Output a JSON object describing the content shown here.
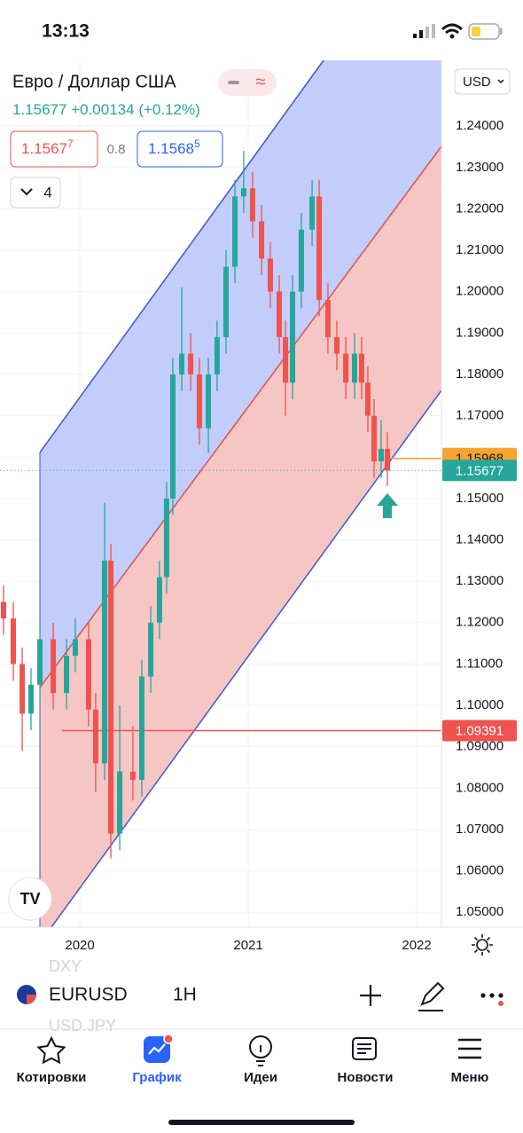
{
  "status_bar": {
    "time": "13:13"
  },
  "header": {
    "title": "Евро / Доллар США",
    "price": "1.15677",
    "change": "+0.00134",
    "change_pct": "(+0.12%)",
    "currency": "USD"
  },
  "order_panel": {
    "sell": "1.1567",
    "sell_pip": "7",
    "spread": "0.8",
    "buy": "1.1568",
    "buy_pip": "5"
  },
  "indicators_toggle": "4",
  "chart_data": {
    "type": "candlestick",
    "x": [
      2019.547,
      2019.605,
      2019.658,
      2019.71,
      2019.763,
      2019.842,
      2019.921,
      2019.973,
      2020.052,
      2020.094,
      2020.147,
      2020.184,
      2020.237,
      2020.315,
      2020.368,
      2020.421,
      2020.473,
      2020.515,
      2020.552,
      2020.605,
      2020.658,
      2020.71,
      2020.763,
      2020.815,
      2020.868,
      2020.921,
      2020.973,
      2021.026,
      2021.079,
      2021.131,
      2021.184,
      2021.221,
      2021.263,
      2021.315,
      2021.379,
      2021.421,
      2021.473,
      2021.526,
      2021.579,
      2021.631,
      2021.673,
      2021.71,
      2021.747,
      2021.789,
      2021.826
    ],
    "open": [
      1.125,
      1.121,
      1.11,
      1.098,
      1.105,
      1.116,
      1.103,
      1.112,
      1.116,
      1.099,
      1.086,
      1.135,
      1.069,
      1.084,
      1.082,
      1.107,
      1.12,
      1.131,
      1.15,
      1.18,
      1.185,
      1.18,
      1.167,
      1.18,
      1.189,
      1.206,
      1.223,
      1.225,
      1.217,
      1.208,
      1.2,
      1.189,
      1.178,
      1.2,
      1.215,
      1.223,
      1.198,
      1.189,
      1.185,
      1.178,
      1.185,
      1.178,
      1.17,
      1.159,
      1.162
    ],
    "high": [
      1.129,
      1.125,
      1.114,
      1.109,
      1.12,
      1.12,
      1.116,
      1.121,
      1.12,
      1.103,
      1.149,
      1.139,
      1.1,
      1.095,
      1.111,
      1.124,
      1.135,
      1.154,
      1.184,
      1.201,
      1.19,
      1.184,
      1.184,
      1.193,
      1.21,
      1.227,
      1.234,
      1.229,
      1.221,
      1.212,
      1.204,
      1.193,
      1.204,
      1.219,
      1.227,
      1.227,
      1.202,
      1.193,
      1.189,
      1.19,
      1.189,
      1.182,
      1.174,
      1.169,
      1.166
    ],
    "low": [
      1.117,
      1.106,
      1.089,
      1.094,
      1.101,
      1.099,
      1.099,
      1.108,
      1.095,
      1.079,
      1.082,
      1.063,
      1.065,
      1.077,
      1.078,
      1.103,
      1.116,
      1.127,
      1.146,
      1.176,
      1.176,
      1.163,
      1.161,
      1.176,
      1.185,
      1.202,
      1.219,
      1.213,
      1.204,
      1.196,
      1.185,
      1.17,
      1.174,
      1.196,
      1.211,
      1.194,
      1.185,
      1.181,
      1.174,
      1.174,
      1.174,
      1.166,
      1.155,
      1.155,
      1.153
    ],
    "close": [
      1.121,
      1.11,
      1.098,
      1.105,
      1.116,
      1.103,
      1.112,
      1.116,
      1.099,
      1.086,
      1.135,
      1.069,
      1.084,
      1.082,
      1.107,
      1.12,
      1.131,
      1.15,
      1.18,
      1.185,
      1.18,
      1.167,
      1.18,
      1.189,
      1.206,
      1.223,
      1.225,
      1.217,
      1.208,
      1.2,
      1.189,
      1.178,
      1.2,
      1.215,
      1.223,
      1.198,
      1.189,
      1.185,
      1.178,
      1.185,
      1.178,
      1.17,
      1.159,
      1.162,
      1.15677
    ],
    "up_color": "#26a69a",
    "down_color": "#ef5350",
    "xlim": [
      2019.526,
      2022.147
    ],
    "ylim": [
      1.0464,
      1.2559
    ],
    "xticks": [
      2020,
      2021,
      2022
    ],
    "yticks": [
      {
        "value": 1.05,
        "label": "1.05000"
      },
      {
        "value": 1.06,
        "label": "1.06000"
      },
      {
        "value": 1.07,
        "label": "1.07000"
      },
      {
        "value": 1.08,
        "label": "1.08000"
      },
      {
        "value": 1.09,
        "label": "1.09000"
      },
      {
        "value": 1.1,
        "label": "1.10000"
      },
      {
        "value": 1.11,
        "label": "1.11000"
      },
      {
        "value": 1.12,
        "label": "1.12000"
      },
      {
        "value": 1.13,
        "label": "1.13000"
      },
      {
        "value": 1.14,
        "label": "1.14000"
      },
      {
        "value": 1.15,
        "label": "1.15000"
      },
      {
        "value": 1.16,
        "label": "1.16000"
      },
      {
        "value": 1.17,
        "label": "1.17000"
      },
      {
        "value": 1.18,
        "label": "1.18000"
      },
      {
        "value": 1.19,
        "label": "1.19000"
      },
      {
        "value": 1.2,
        "label": "1.20000"
      },
      {
        "value": 1.21,
        "label": "1.21000"
      },
      {
        "value": 1.22,
        "label": "1.22000"
      },
      {
        "value": 1.23,
        "label": "1.23000"
      },
      {
        "value": 1.24,
        "label": "1.24000"
      }
    ],
    "grid": true,
    "price_levels": [
      {
        "value": 1.15968,
        "color": "#f7a330",
        "text_color": "#131722",
        "line": "solid"
      },
      {
        "value": 1.15677,
        "color": "#26a69a",
        "text_color": "#ffffff",
        "line": "dotted"
      },
      {
        "value": 1.09391,
        "color": "#ef5350",
        "text_color": "#ffffff",
        "line": "solid"
      }
    ]
  },
  "bottom_bar": {
    "ghost_top": "DXY",
    "symbol": "EURUSD",
    "interval": "1H",
    "ghost_bottom": "USD.JPY"
  },
  "nav": [
    {
      "label": "Котировки"
    },
    {
      "label": "График"
    },
    {
      "label": "Идеи"
    },
    {
      "label": "Новости"
    },
    {
      "label": "Меню"
    }
  ]
}
